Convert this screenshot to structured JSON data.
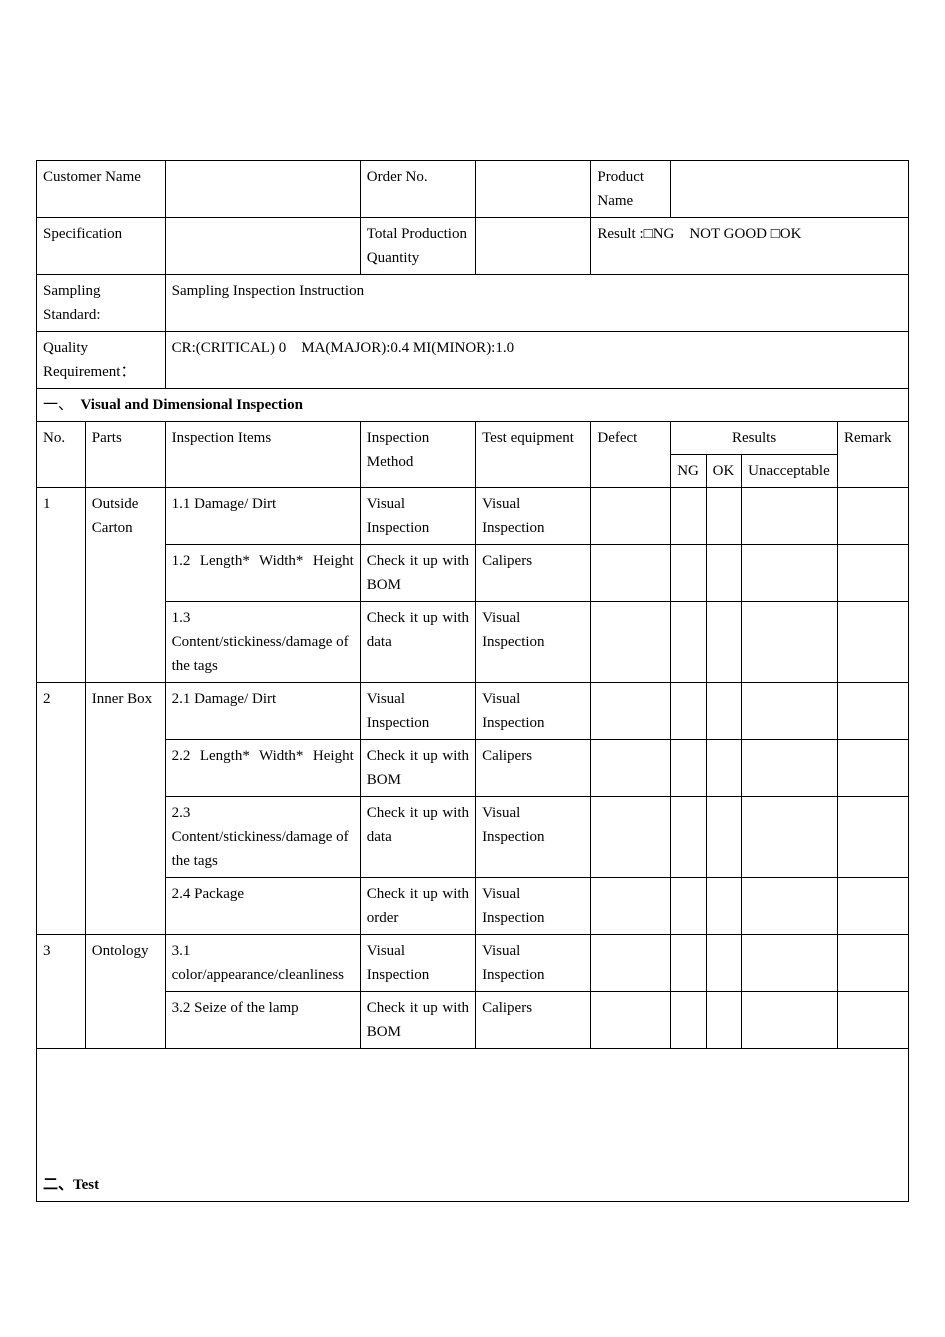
{
  "header": {
    "customer_name_label": "Customer Name",
    "customer_name_value": "",
    "order_no_label": "Order No.",
    "order_no_value": "",
    "product_name_label": "Product Name",
    "product_name_value": "",
    "specification_label": "Specification",
    "specification_value": "",
    "total_qty_label": "Total Production Quantity",
    "total_qty_value": "",
    "result_text": "Result :□NG    NOT GOOD □OK",
    "sampling_label": "Sampling Standard:",
    "sampling_value": "Sampling Inspection Instruction",
    "quality_label": "Quality Requirement：",
    "quality_value": "CR:(CRITICAL) 0    MA(MAJOR):0.4 MI(MINOR):1.0"
  },
  "section1": {
    "heading": "一、  Visual and Dimensional Inspection",
    "columns": {
      "no": "No.",
      "parts": "Parts",
      "items": "Inspection Items",
      "method": "Inspection Method",
      "equipment": "Test equipment",
      "defect": "Defect",
      "results": "Results",
      "ng": "NG",
      "ok": "OK",
      "unacceptable": "Unacceptable",
      "remark": "Remark"
    },
    "rows": [
      {
        "no": "1",
        "no_rowspan": 3,
        "parts": "Outside Carton",
        "parts_rowspan": 3,
        "item": "1.1 Damage/ Dirt",
        "method": "Visual Inspection",
        "equipment": "Visual Inspection"
      },
      {
        "item": "1.2 Length* Width* Height",
        "item_justify": true,
        "method": "Check it up with BOM",
        "method_justify": true,
        "equipment": "Calipers"
      },
      {
        "item": "1.3 Content/stickiness/damage of the tags",
        "method": "Check it up with data",
        "method_justify": true,
        "equipment": "Visual Inspection"
      },
      {
        "no": "2",
        "no_rowspan": 4,
        "parts": "Inner Box",
        "parts_rowspan": 4,
        "item": "2.1 Damage/ Dirt",
        "method": "Visual Inspection",
        "equipment": "Visual Inspection"
      },
      {
        "item": "2.2 Length* Width* Height",
        "item_justify": true,
        "method": "Check it up with BOM",
        "method_justify": true,
        "equipment": "Calipers"
      },
      {
        "item": "2.3 Content/stickiness/damage of the tags",
        "method": "Check it up with data",
        "method_justify": true,
        "equipment": "Visual Inspection"
      },
      {
        "item": "2.4 Package",
        "method": "Check it up with order",
        "method_justify": true,
        "equipment": "Visual Inspection"
      },
      {
        "no": "3",
        "no_rowspan": 2,
        "parts": "Ontology",
        "parts_rowspan": 2,
        "item": "3.1 color/appearance/cleanliness",
        "method": "Visual Inspection",
        "equipment": "Visual Inspection"
      },
      {
        "item": "3.2 Seize of the lamp",
        "method": "Check it up with BOM",
        "method_justify": true,
        "equipment": "Calipers"
      }
    ]
  },
  "section2": {
    "heading": "二、Test"
  },
  "layout": {
    "col_widths": {
      "no": "5.5%",
      "parts": "9%",
      "items": "22%",
      "method": "13%",
      "equipment": "13%",
      "defect": "9%",
      "ng": "4%",
      "ok": "4%",
      "unacceptable": "8%",
      "remark": "8%"
    }
  }
}
